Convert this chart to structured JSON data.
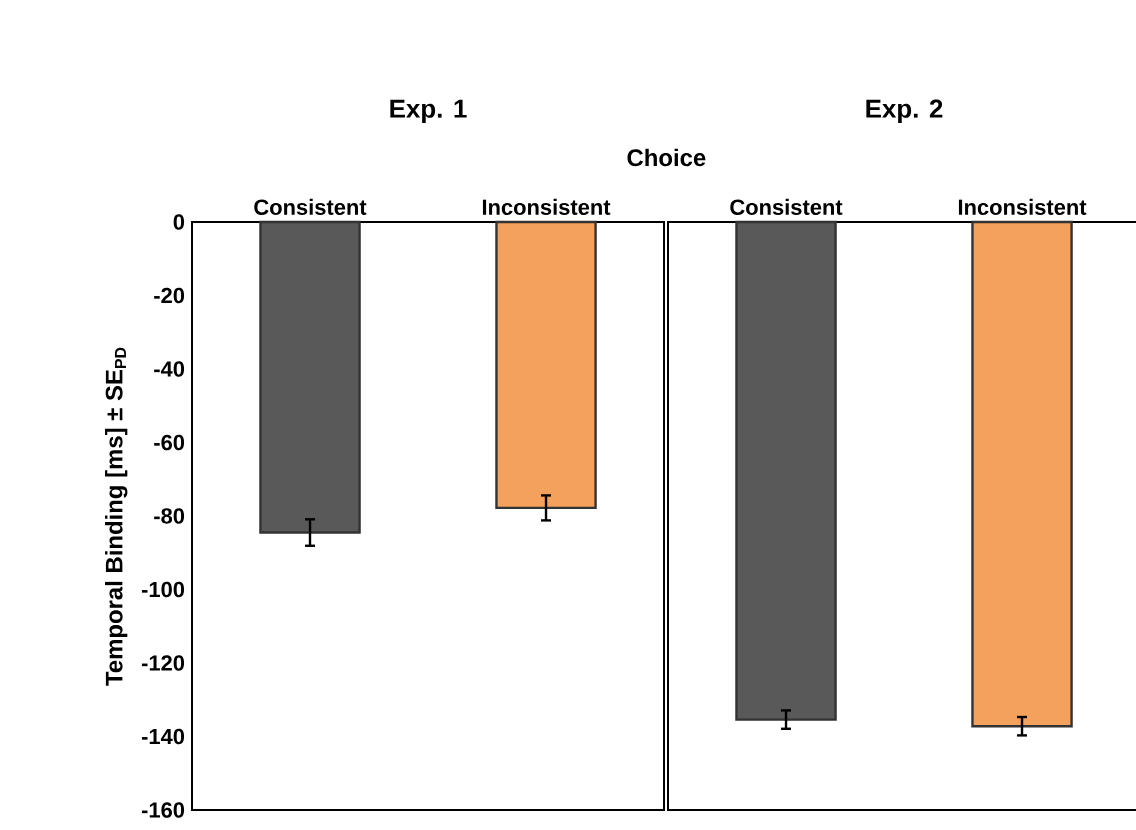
{
  "chart_data": [
    {
      "type": "bar",
      "title": "Exp. 1",
      "ylabel": "Temporal Binding [ms] ± SE$_{PD}$",
      "annotations": [
        "**Choice**"
      ],
      "categories": [
        "Consistent",
        "Inconsistent"
      ],
      "values": [
        -84.5,
        -77.8
      ],
      "colors": [
        "#595959",
        "#f4a15d"
      ],
      "errors": [
        3.6,
        3.4
      ],
      "ylim": [
        -160,
        0
      ],
      "yticks": [
        -160,
        -140,
        -120,
        -100,
        -80,
        -60,
        -40,
        -20,
        0
      ]
    },
    {
      "type": "bar",
      "title": "Exp. 2",
      "categories": [
        "Consistent",
        "Inconsistent"
      ],
      "values": [
        -135.4,
        -137.2
      ],
      "colors": [
        "#595959",
        "#f4a15d"
      ],
      "errors": [
        2.5,
        2.5
      ],
      "ylim": [
        -160,
        0
      ],
      "yticks": [
        -160,
        -140,
        -120,
        -100,
        -80,
        -60,
        -40,
        -20,
        0
      ],
      "tick_labels": "x"
    }
  ]
}
